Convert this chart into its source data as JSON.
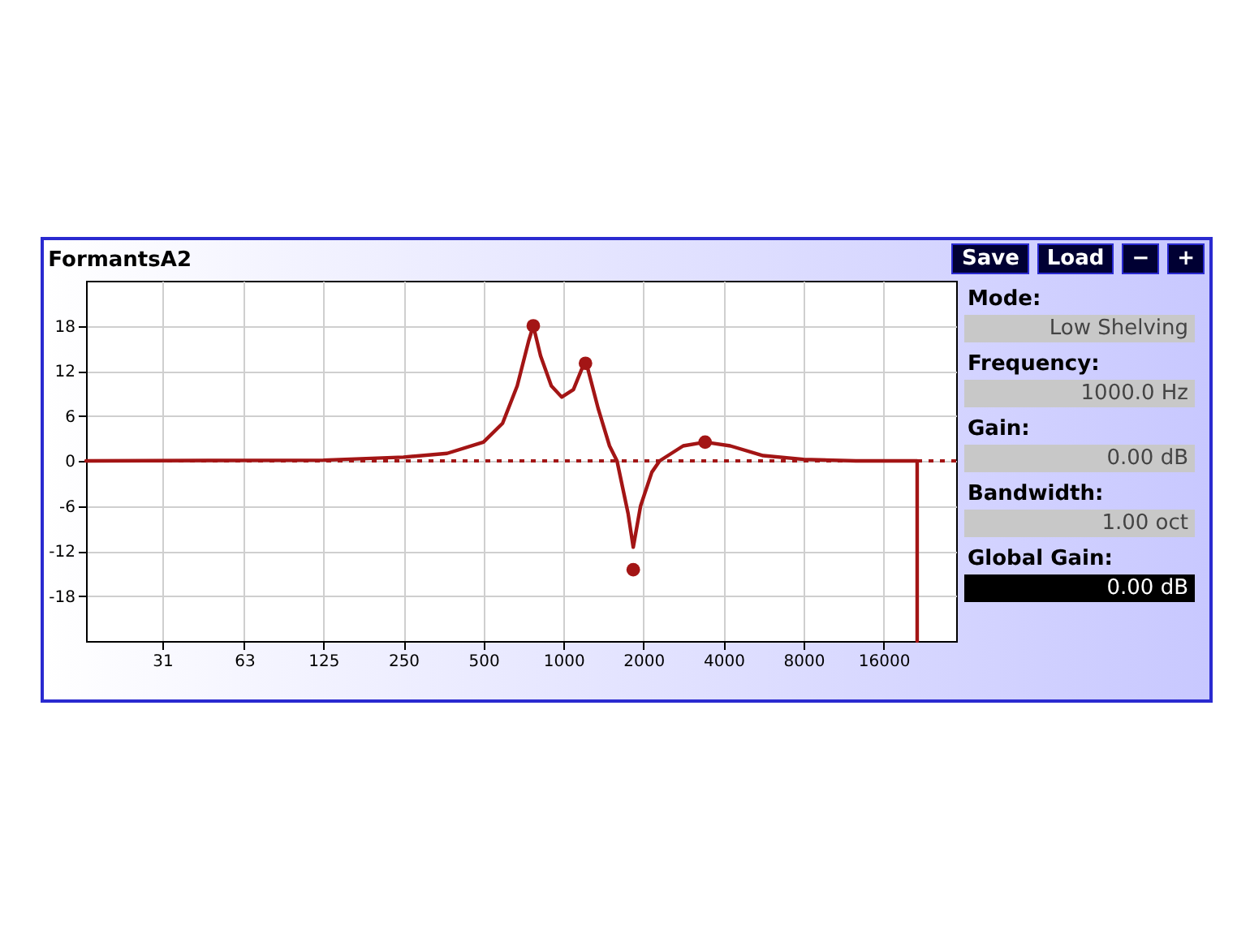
{
  "chart_data": [
    {
      "type": "line",
      "title": "FormantsA2",
      "log": "x",
      "grid": true,
      "xlim": [
        16,
        30000
      ],
      "xticks": [
        31,
        63,
        125,
        250,
        500,
        1000,
        2000,
        4000,
        8000,
        16000
      ],
      "ylim": [
        -24,
        24
      ],
      "yticks": [
        -18,
        -12,
        -6,
        0,
        6,
        12,
        18
      ],
      "ref_lines": [
        {
          "axis": "y",
          "value": 0,
          "color": "#a31515",
          "line_style": "dotted"
        }
      ],
      "series": [
        {
          "type": "line",
          "color": "#a31515",
          "marker": "none",
          "line_style": "solid",
          "x": [
            16,
            125,
            250,
            365,
            500,
            590,
            670,
            740,
            770,
            820,
            900,
            985,
            1090,
            1180,
            1230,
            1350,
            1490,
            1590,
            1750,
            1830,
            1950,
            2150,
            2300,
            2820,
            3410,
            4240,
            5640,
            8000,
            12600,
            21400,
            21400
          ],
          "values": [
            0,
            0.1,
            0.5,
            1,
            2.5,
            5,
            10,
            16,
            18,
            14,
            10,
            8.5,
            9.5,
            12.5,
            12.5,
            7,
            2,
            0,
            -7,
            -11.5,
            -6,
            -1.5,
            0,
            2,
            2.5,
            2,
            0.7,
            0.2,
            0,
            0,
            -24
          ]
        },
        {
          "type": "scatter",
          "color": "#a31515",
          "marker": "circle",
          "x": [
            770,
            1210,
            1830,
            3410
          ],
          "values": [
            18,
            13,
            -14.5,
            2.5
          ]
        }
      ]
    },
    {
      "type": "other",
      "annotations": [
        "Save",
        "Load",
        "−",
        "+",
        "Mode:",
        "Low Shelving",
        "Frequency:",
        "1000.0 Hz",
        "Gain:",
        "0.00 dB",
        "Bandwidth:",
        "1.00 oct",
        "Global Gain:",
        "0.00 dB"
      ]
    }
  ]
}
